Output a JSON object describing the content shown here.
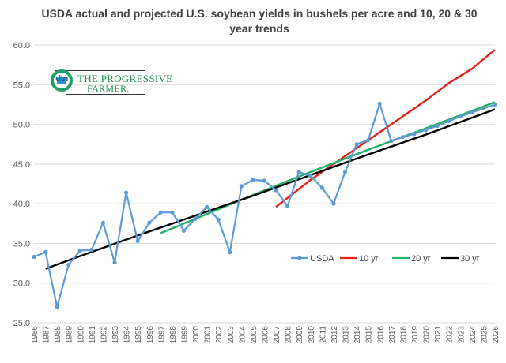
{
  "title": "USDA  actual and projected U.S. soybean yields in bushels per acre and 10, 20 & 30 year trends",
  "logo": {
    "mark": "dtn",
    "line1": "THE PROGRESSIVE",
    "line2": "FARMER."
  },
  "colors": {
    "usda": "#5b9bd5",
    "trend_10": "#e32119",
    "trend_20": "#21b06b",
    "trend_30": "#000000",
    "grid": "#d9d9d9",
    "axis_text": "#595959"
  },
  "chart_data": {
    "type": "line",
    "title": "USDA  actual and projected U.S. soybean yields in bushels per acre and 10, 20 & 30 year trends",
    "xlabel": "",
    "ylabel": "",
    "x_ticks": [
      1986,
      1987,
      1988,
      1989,
      1990,
      1991,
      1992,
      1993,
      1994,
      1995,
      1996,
      1997,
      1998,
      1999,
      2000,
      2001,
      2002,
      2003,
      2004,
      2005,
      2006,
      2007,
      2008,
      2009,
      2010,
      2011,
      2012,
      2013,
      2014,
      2015,
      2016,
      2017,
      2018,
      2019,
      2020,
      2021,
      2022,
      2023,
      2024,
      2025,
      2026
    ],
    "xlim": [
      1986,
      2026
    ],
    "ylim": [
      25.0,
      60.0
    ],
    "y_ticks": [
      "25.0",
      "30.0",
      "35.0",
      "40.0",
      "45.0",
      "50.0",
      "55.0",
      "60.0"
    ],
    "grid": "horizontal",
    "legend_position": "right-middle",
    "series": [
      {
        "name": "USDA",
        "color_key": "usda",
        "marker": true,
        "x": [
          1986,
          1987,
          1988,
          1989,
          1990,
          1991,
          1992,
          1993,
          1994,
          1995,
          1996,
          1997,
          1998,
          1999,
          2000,
          2001,
          2002,
          2003,
          2004,
          2005,
          2006,
          2007,
          2008,
          2009,
          2010,
          2011,
          2012,
          2013,
          2014,
          2015,
          2016,
          2017,
          2018,
          2019,
          2020,
          2021,
          2022,
          2023,
          2024,
          2025,
          2026
        ],
        "y": [
          33.3,
          33.9,
          27.0,
          32.3,
          34.1,
          34.2,
          37.6,
          32.6,
          41.4,
          35.3,
          37.6,
          38.9,
          38.9,
          36.6,
          38.1,
          39.6,
          38.0,
          33.9,
          42.2,
          43.0,
          42.9,
          41.7,
          39.7,
          44.0,
          43.5,
          42.0,
          40.0,
          44.0,
          47.5,
          48.0,
          52.6,
          47.9,
          48.4,
          48.8,
          49.3,
          49.8,
          50.4,
          51.0,
          51.5,
          52.0,
          52.5
        ]
      },
      {
        "name": "10 yr",
        "color_key": "trend_10",
        "marker": false,
        "x": [
          2007,
          2010,
          2014,
          2016,
          2018,
          2020,
          2022,
          2024,
          2026
        ],
        "y": [
          39.6,
          43.0,
          47.0,
          49.0,
          51.0,
          53.0,
          55.2,
          57.0,
          59.4
        ]
      },
      {
        "name": "20 yr",
        "color_key": "trend_20",
        "marker": false,
        "x": [
          1997,
          2000,
          2005,
          2010,
          2015,
          2020,
          2026
        ],
        "y": [
          36.3,
          38.1,
          41.1,
          44.0,
          46.8,
          49.5,
          52.8
        ]
      },
      {
        "name": "30 yr",
        "color_key": "trend_30",
        "marker": false,
        "x": [
          1987,
          1990,
          1995,
          2000,
          2005,
          2010,
          2015,
          2020,
          2026
        ],
        "y": [
          31.8,
          33.4,
          36.0,
          38.5,
          41.0,
          43.6,
          46.2,
          48.7,
          51.9
        ]
      }
    ]
  }
}
